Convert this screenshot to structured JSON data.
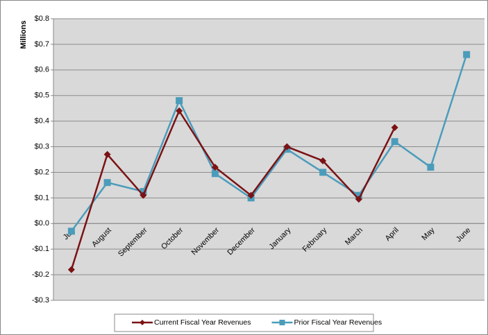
{
  "chart_data": {
    "type": "line",
    "y_label": "Millions",
    "categories": [
      "July",
      "August",
      "September",
      "October",
      "November",
      "December",
      "January",
      "February",
      "March",
      "April",
      "May",
      "June"
    ],
    "series": [
      {
        "name": "Current Fiscal Year Revenues",
        "color": "#7b1214",
        "marker": "diamond",
        "values": [
          -0.18,
          0.27,
          0.11,
          0.44,
          0.22,
          0.11,
          0.3,
          0.245,
          0.095,
          0.375,
          null,
          null
        ]
      },
      {
        "name": "Prior Fiscal Year Revenues",
        "color": "#4b9cbb",
        "marker": "square",
        "values": [
          -0.03,
          0.16,
          0.125,
          0.48,
          0.195,
          0.1,
          0.29,
          0.2,
          0.11,
          0.32,
          0.22,
          0.66
        ]
      }
    ],
    "ylim": [
      -0.3,
      0.8
    ],
    "yticks": [
      {
        "value": -0.3,
        "label": "-$0.3"
      },
      {
        "value": -0.2,
        "label": "-$0.2"
      },
      {
        "value": -0.1,
        "label": "-$0.1"
      },
      {
        "value": 0,
        "label": "$0.0"
      },
      {
        "value": 0.1,
        "label": "$0.1"
      },
      {
        "value": 0.2,
        "label": "$0.2"
      },
      {
        "value": 0.3,
        "label": "$0.3"
      },
      {
        "value": 0.4,
        "label": "$0.4"
      },
      {
        "value": 0.5,
        "label": "$0.5"
      },
      {
        "value": 0.6,
        "label": "$0.6"
      },
      {
        "value": 0.7,
        "label": "$0.7"
      },
      {
        "value": 0.8,
        "label": "$0.8"
      }
    ],
    "grid": true,
    "legend": "bottom"
  }
}
